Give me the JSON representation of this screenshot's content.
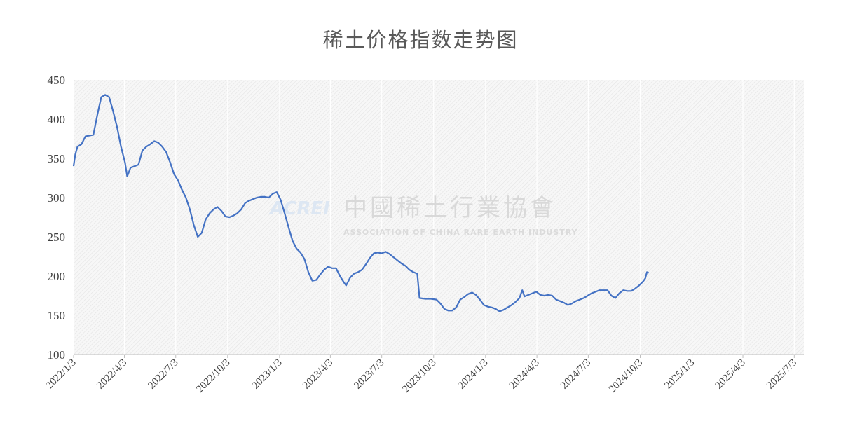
{
  "chart_data": {
    "type": "line",
    "title": "稀土价格指数走势图",
    "xlabel": "",
    "ylabel": "",
    "ylim": [
      100,
      450
    ],
    "yticks": [
      100,
      150,
      200,
      250,
      300,
      350,
      400,
      450
    ],
    "xlim": [
      "2022-01-03",
      "2025-07-20"
    ],
    "xticks": [
      "2022/1/3",
      "2022/4/3",
      "2022/7/3",
      "2022/10/3",
      "2023/1/3",
      "2023/4/3",
      "2023/7/3",
      "2023/10/3",
      "2024/1/3",
      "2024/4/3",
      "2024/7/3",
      "2024/10/3",
      "2025/1/3",
      "2025/4/3",
      "2025/7/3"
    ],
    "grid": "background hatch",
    "legend": "none",
    "series": [
      {
        "color": "#4472c4",
        "points": [
          [
            "2022-01-03",
            340
          ],
          [
            "2022-01-06",
            355
          ],
          [
            "2022-01-10",
            365
          ],
          [
            "2022-01-17",
            368
          ],
          [
            "2022-01-24",
            378
          ],
          [
            "2022-02-07",
            380
          ],
          [
            "2022-02-14",
            405
          ],
          [
            "2022-02-21",
            428
          ],
          [
            "2022-02-28",
            431
          ],
          [
            "2022-03-07",
            428
          ],
          [
            "2022-03-14",
            410
          ],
          [
            "2022-03-21",
            390
          ],
          [
            "2022-03-28",
            365
          ],
          [
            "2022-04-04",
            345
          ],
          [
            "2022-04-08",
            327
          ],
          [
            "2022-04-14",
            338
          ],
          [
            "2022-04-21",
            340
          ],
          [
            "2022-04-28",
            342
          ],
          [
            "2022-05-05",
            360
          ],
          [
            "2022-05-12",
            365
          ],
          [
            "2022-05-19",
            368
          ],
          [
            "2022-05-26",
            372
          ],
          [
            "2022-06-02",
            370
          ],
          [
            "2022-06-09",
            365
          ],
          [
            "2022-06-16",
            358
          ],
          [
            "2022-06-23",
            345
          ],
          [
            "2022-06-30",
            330
          ],
          [
            "2022-07-07",
            322
          ],
          [
            "2022-07-14",
            310
          ],
          [
            "2022-07-21",
            300
          ],
          [
            "2022-07-28",
            285
          ],
          [
            "2022-08-04",
            265
          ],
          [
            "2022-08-11",
            250
          ],
          [
            "2022-08-18",
            255
          ],
          [
            "2022-08-25",
            272
          ],
          [
            "2022-09-01",
            280
          ],
          [
            "2022-09-08",
            285
          ],
          [
            "2022-09-15",
            288
          ],
          [
            "2022-09-22",
            283
          ],
          [
            "2022-09-29",
            276
          ],
          [
            "2022-10-06",
            275
          ],
          [
            "2022-10-13",
            277
          ],
          [
            "2022-10-20",
            280
          ],
          [
            "2022-10-27",
            285
          ],
          [
            "2022-11-03",
            293
          ],
          [
            "2022-11-10",
            296
          ],
          [
            "2022-11-17",
            298
          ],
          [
            "2022-11-24",
            300
          ],
          [
            "2022-12-01",
            301
          ],
          [
            "2022-12-08",
            301
          ],
          [
            "2022-12-15",
            300
          ],
          [
            "2022-12-22",
            305
          ],
          [
            "2022-12-29",
            307
          ],
          [
            "2023-01-05",
            297
          ],
          [
            "2023-01-12",
            280
          ],
          [
            "2023-01-19",
            262
          ],
          [
            "2023-01-26",
            245
          ],
          [
            "2023-02-02",
            235
          ],
          [
            "2023-02-09",
            230
          ],
          [
            "2023-02-16",
            222
          ],
          [
            "2023-02-23",
            205
          ],
          [
            "2023-03-02",
            194
          ],
          [
            "2023-03-09",
            195
          ],
          [
            "2023-03-16",
            202
          ],
          [
            "2023-03-23",
            208
          ],
          [
            "2023-03-30",
            212
          ],
          [
            "2023-04-06",
            210
          ],
          [
            "2023-04-13",
            210
          ],
          [
            "2023-04-20",
            200
          ],
          [
            "2023-04-27",
            192
          ],
          [
            "2023-05-01",
            188
          ],
          [
            "2023-05-08",
            198
          ],
          [
            "2023-05-15",
            203
          ],
          [
            "2023-05-22",
            205
          ],
          [
            "2023-05-29",
            208
          ],
          [
            "2023-06-05",
            215
          ],
          [
            "2023-06-12",
            223
          ],
          [
            "2023-06-19",
            229
          ],
          [
            "2023-06-26",
            230
          ],
          [
            "2023-07-03",
            229
          ],
          [
            "2023-07-10",
            231
          ],
          [
            "2023-07-17",
            228
          ],
          [
            "2023-07-24",
            224
          ],
          [
            "2023-07-31",
            220
          ],
          [
            "2023-08-07",
            216
          ],
          [
            "2023-08-14",
            213
          ],
          [
            "2023-08-21",
            208
          ],
          [
            "2023-08-28",
            205
          ],
          [
            "2023-09-04",
            203
          ],
          [
            "2023-09-08",
            172
          ],
          [
            "2023-09-18",
            171
          ],
          [
            "2023-09-28",
            171
          ],
          [
            "2023-10-08",
            170
          ],
          [
            "2023-10-15",
            165
          ],
          [
            "2023-10-22",
            158
          ],
          [
            "2023-10-29",
            156
          ],
          [
            "2023-11-05",
            156
          ],
          [
            "2023-11-12",
            160
          ],
          [
            "2023-11-19",
            170
          ],
          [
            "2023-11-26",
            173
          ],
          [
            "2023-12-03",
            177
          ],
          [
            "2023-12-10",
            179
          ],
          [
            "2023-12-17",
            176
          ],
          [
            "2023-12-24",
            170
          ],
          [
            "2023-12-31",
            163
          ],
          [
            "2024-01-07",
            161
          ],
          [
            "2024-01-14",
            160
          ],
          [
            "2024-01-21",
            158
          ],
          [
            "2024-01-28",
            155
          ],
          [
            "2024-02-04",
            157
          ],
          [
            "2024-02-11",
            160
          ],
          [
            "2024-02-18",
            163
          ],
          [
            "2024-02-25",
            167
          ],
          [
            "2024-03-03",
            172
          ],
          [
            "2024-03-08",
            182
          ],
          [
            "2024-03-12",
            174
          ],
          [
            "2024-03-19",
            176
          ],
          [
            "2024-03-26",
            178
          ],
          [
            "2024-04-02",
            180
          ],
          [
            "2024-04-09",
            176
          ],
          [
            "2024-04-16",
            175
          ],
          [
            "2024-04-23",
            176
          ],
          [
            "2024-04-30",
            175
          ],
          [
            "2024-05-07",
            170
          ],
          [
            "2024-05-14",
            168
          ],
          [
            "2024-05-21",
            166
          ],
          [
            "2024-05-28",
            163
          ],
          [
            "2024-06-04",
            165
          ],
          [
            "2024-06-11",
            168
          ],
          [
            "2024-06-18",
            170
          ],
          [
            "2024-06-25",
            172
          ],
          [
            "2024-07-02",
            175
          ],
          [
            "2024-07-09",
            178
          ],
          [
            "2024-07-16",
            180
          ],
          [
            "2024-07-23",
            182
          ],
          [
            "2024-07-30",
            182
          ],
          [
            "2024-08-06",
            182
          ],
          [
            "2024-08-13",
            175
          ],
          [
            "2024-08-20",
            172
          ],
          [
            "2024-08-27",
            178
          ],
          [
            "2024-09-03",
            182
          ],
          [
            "2024-09-10",
            181
          ],
          [
            "2024-09-17",
            181
          ],
          [
            "2024-09-24",
            184
          ],
          [
            "2024-10-01",
            188
          ],
          [
            "2024-10-08",
            193
          ],
          [
            "2024-10-12",
            197
          ],
          [
            "2024-10-15",
            205
          ],
          [
            "2024-10-18",
            204
          ]
        ]
      }
    ]
  },
  "watermark": {
    "logo_text": "ACREI",
    "name_cn": "中國稀土行業協會",
    "name_en": "ASSOCIATION OF CHINA RARE EARTH INDUSTRY"
  }
}
